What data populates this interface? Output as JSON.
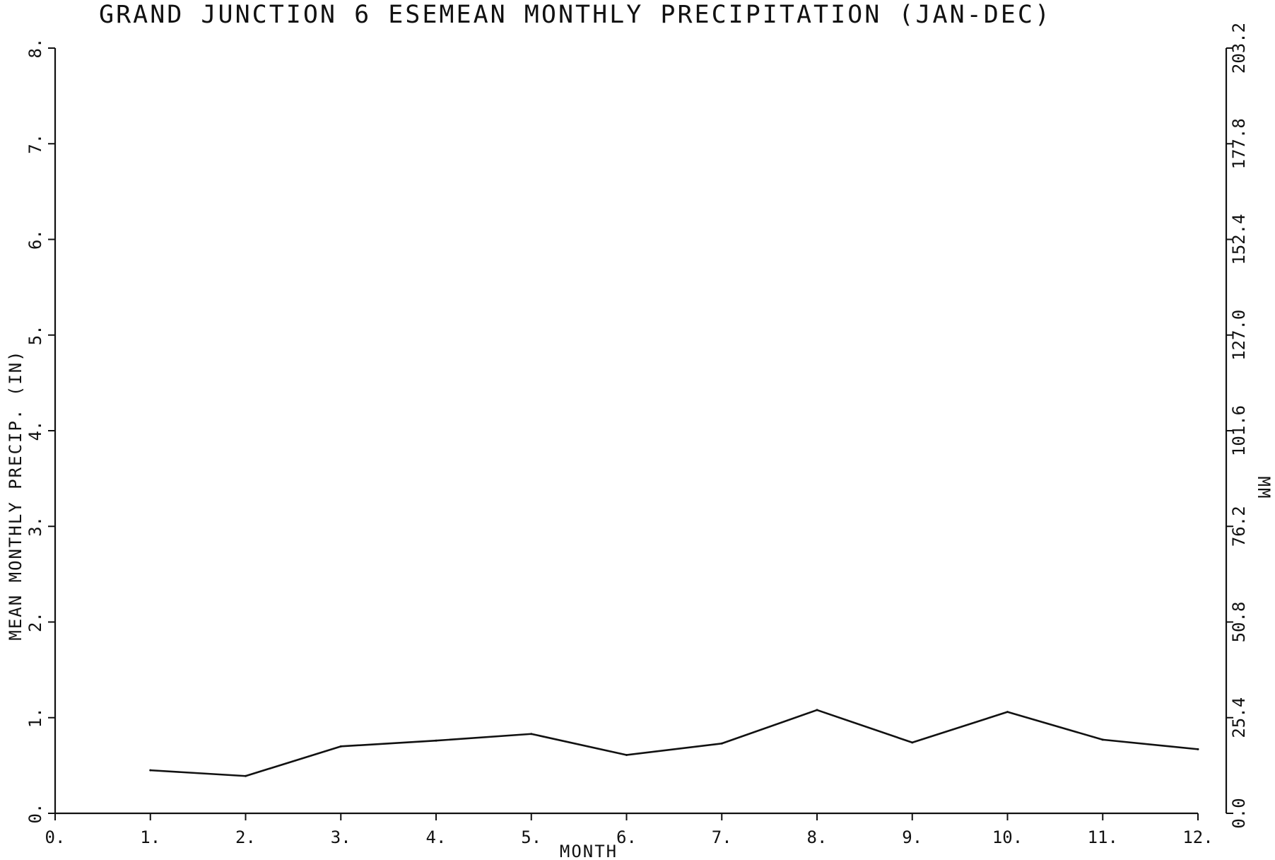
{
  "chart_data": {
    "type": "line",
    "title": "GRAND JUNCTION 6 ESEMEAN MONTHLY PRECIPITATION (JAN-DEC)",
    "xlabel": "MONTH",
    "ylabel": "MEAN MONTHLY PRECIP. (IN)",
    "y2label": "MM",
    "xlim": [
      0,
      12
    ],
    "ylim": [
      0,
      8
    ],
    "x_ticks": [
      "0.",
      "1.",
      "2.",
      "3.",
      "4.",
      "5.",
      "6.",
      "7.",
      "8.",
      "9.",
      "10.",
      "11.",
      "12."
    ],
    "y_ticks": [
      "0.",
      "1.",
      "2.",
      "3.",
      "4.",
      "5.",
      "6.",
      "7.",
      "8."
    ],
    "y2_ticks": [
      "0.0",
      "25.4",
      "50.8",
      "76.2",
      "101.6",
      "127.0",
      "152.4",
      "177.8",
      "203.2"
    ],
    "grid": false,
    "series": [
      {
        "x": [
          1,
          2,
          3,
          4,
          5,
          6,
          7,
          8,
          9,
          10,
          11,
          12
        ],
        "values": [
          0.45,
          0.39,
          0.7,
          0.76,
          0.83,
          0.61,
          0.73,
          1.08,
          0.74,
          1.06,
          0.77,
          0.67
        ]
      }
    ]
  }
}
